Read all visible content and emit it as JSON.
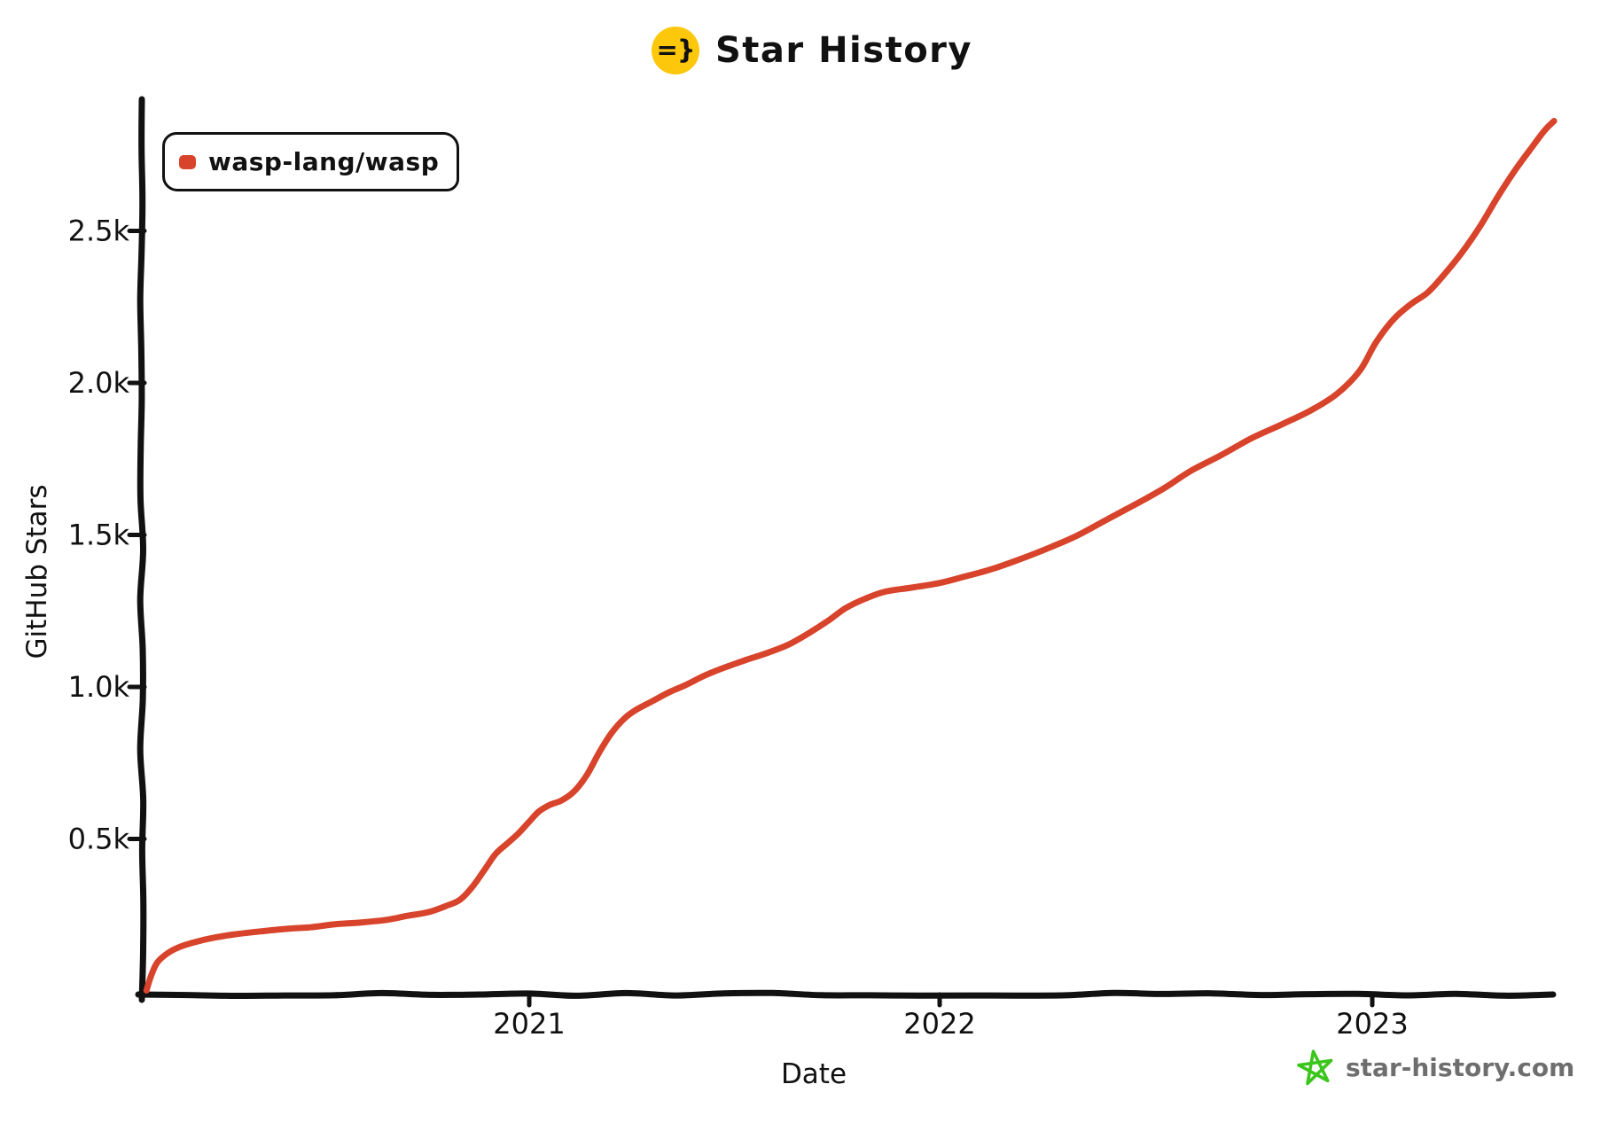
{
  "title": "Star History",
  "logo": {
    "glyph": "=}",
    "bg_color": "#fdc70c"
  },
  "legend": {
    "label": "wasp-lang/wasp",
    "color": "#d8432b"
  },
  "watermark": {
    "label": "star-history.com",
    "star_color": "#3bc51d",
    "text_color": "#6e6e6e"
  },
  "chart_data": {
    "type": "line",
    "title": "Star History",
    "xlabel": "Date",
    "ylabel": "GitHub Stars",
    "x_tick_labels": [
      "2021",
      "2022",
      "2023"
    ],
    "x_tick_years": [
      2021,
      2022,
      2023
    ],
    "y_tick_labels": [
      "0.5k",
      "1.0k",
      "1.5k",
      "2.0k",
      "2.5k"
    ],
    "y_tick_values": [
      500,
      1000,
      1500,
      2000,
      2500
    ],
    "xlim_years": [
      2020.05,
      2023.45
    ],
    "ylim": [
      0,
      2930
    ],
    "grid": false,
    "legend_position": "top-left",
    "series": [
      {
        "name": "wasp-lang/wasp",
        "color": "#d8432b",
        "points": [
          [
            2020.085,
            0
          ],
          [
            2020.095,
            45
          ],
          [
            2020.11,
            90
          ],
          [
            2020.13,
            120
          ],
          [
            2020.16,
            143
          ],
          [
            2020.2,
            160
          ],
          [
            2020.25,
            175
          ],
          [
            2020.3,
            187
          ],
          [
            2020.36,
            196
          ],
          [
            2020.42,
            204
          ],
          [
            2020.48,
            211
          ],
          [
            2020.54,
            218
          ],
          [
            2020.6,
            226
          ],
          [
            2020.66,
            236
          ],
          [
            2020.71,
            247
          ],
          [
            2020.76,
            260
          ],
          [
            2020.8,
            278
          ],
          [
            2020.835,
            300
          ],
          [
            2020.865,
            340
          ],
          [
            2020.89,
            395
          ],
          [
            2020.92,
            450
          ],
          [
            2020.95,
            487
          ],
          [
            2020.975,
            520
          ],
          [
            2021.0,
            556
          ],
          [
            2021.025,
            592
          ],
          [
            2021.05,
            612
          ],
          [
            2021.08,
            628
          ],
          [
            2021.11,
            655
          ],
          [
            2021.14,
            710
          ],
          [
            2021.17,
            780
          ],
          [
            2021.2,
            845
          ],
          [
            2021.23,
            895
          ],
          [
            2021.26,
            925
          ],
          [
            2021.3,
            955
          ],
          [
            2021.34,
            982
          ],
          [
            2021.38,
            1005
          ],
          [
            2021.43,
            1040
          ],
          [
            2021.48,
            1068
          ],
          [
            2021.53,
            1090
          ],
          [
            2021.58,
            1112
          ],
          [
            2021.63,
            1140
          ],
          [
            2021.68,
            1175
          ],
          [
            2021.73,
            1222
          ],
          [
            2021.77,
            1258
          ],
          [
            2021.82,
            1290
          ],
          [
            2021.87,
            1312
          ],
          [
            2021.93,
            1328
          ],
          [
            2022.0,
            1342
          ],
          [
            2022.06,
            1362
          ],
          [
            2022.12,
            1388
          ],
          [
            2022.19,
            1425
          ],
          [
            2022.26,
            1462
          ],
          [
            2022.32,
            1500
          ],
          [
            2022.39,
            1552
          ],
          [
            2022.46,
            1605
          ],
          [
            2022.52,
            1655
          ],
          [
            2022.58,
            1710
          ],
          [
            2022.65,
            1762
          ],
          [
            2022.72,
            1818
          ],
          [
            2022.79,
            1862
          ],
          [
            2022.86,
            1912
          ],
          [
            2022.92,
            1965
          ],
          [
            2022.97,
            2040
          ],
          [
            2023.01,
            2135
          ],
          [
            2023.05,
            2210
          ],
          [
            2023.09,
            2262
          ],
          [
            2023.13,
            2300
          ],
          [
            2023.17,
            2360
          ],
          [
            2023.21,
            2430
          ],
          [
            2023.25,
            2520
          ],
          [
            2023.29,
            2610
          ],
          [
            2023.33,
            2700
          ],
          [
            2023.37,
            2775
          ],
          [
            2023.4,
            2830
          ],
          [
            2023.42,
            2862
          ]
        ]
      }
    ]
  }
}
